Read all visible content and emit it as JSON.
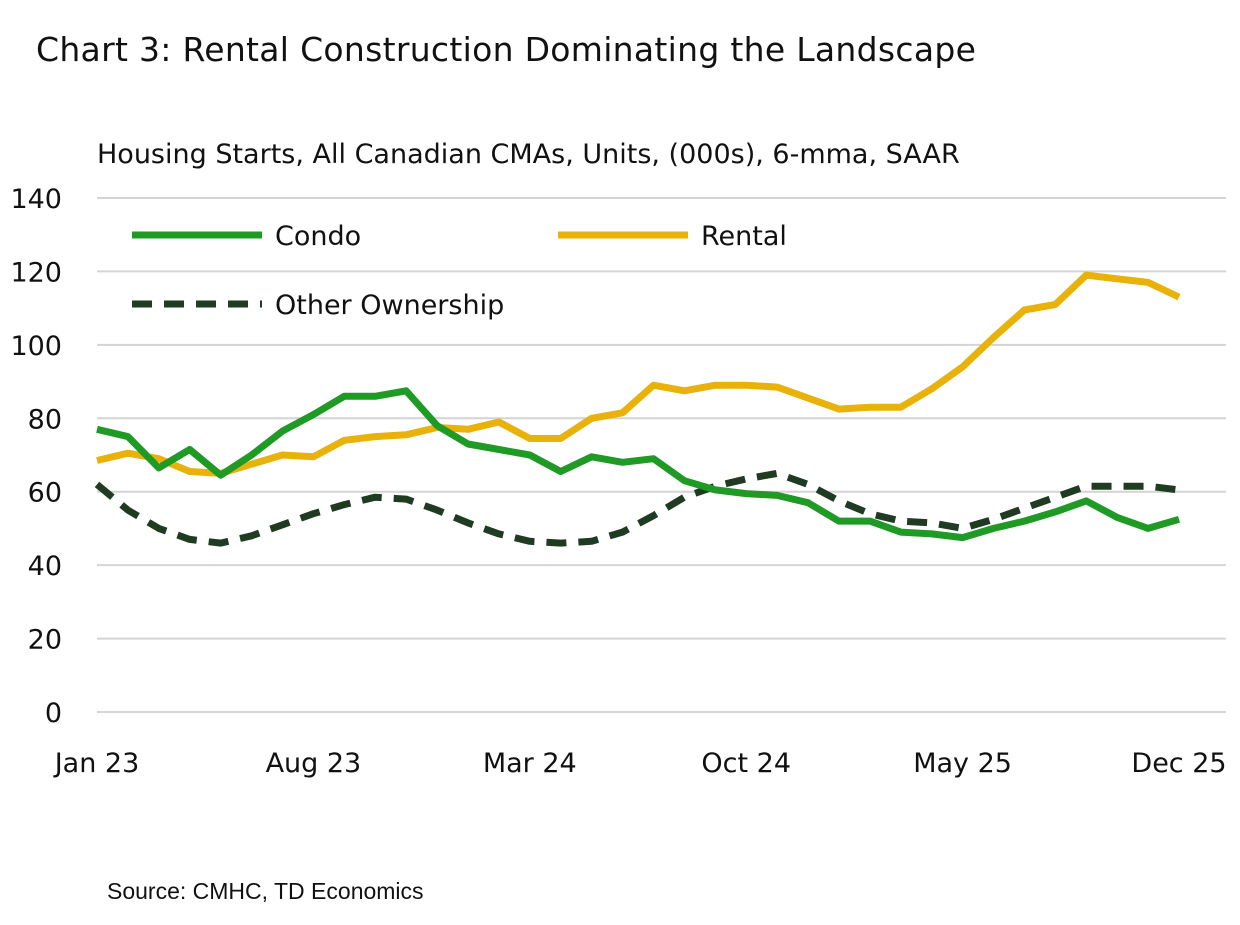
{
  "title": "Chart 3: Rental Construction Dominating the Landscape",
  "subtitle": "Housing Starts, All Canadian CMAs, Units, (000s), 6-mma, SAAR",
  "source": "Source: CMHC, TD Economics",
  "colors": {
    "condo": "#1f9a25",
    "rental": "#e8b20a",
    "other": "#1f3b22",
    "grid": "#d4d4d4"
  },
  "chart_data": {
    "type": "line",
    "title": "Chart 3: Rental Construction Dominating the Landscape",
    "subtitle": "Housing Starts, All Canadian CMAs, Units, (000s), 6-mma, SAAR",
    "xlabel": "",
    "ylabel": "",
    "ylim": [
      0,
      140
    ],
    "yticks": [
      0,
      20,
      40,
      60,
      80,
      100,
      120,
      140
    ],
    "grid": "horizontal",
    "legend_position": "top-left",
    "x": [
      "Jan 23",
      "Feb 23",
      "Mar 23",
      "Apr 23",
      "May 23",
      "Jun 23",
      "Jul 23",
      "Aug 23",
      "Sep 23",
      "Oct 23",
      "Nov 23",
      "Dec 23",
      "Jan 24",
      "Feb 24",
      "Mar 24",
      "Apr 24",
      "May 24",
      "Jun 24",
      "Jul 24",
      "Aug 24",
      "Sep 24",
      "Oct 24",
      "Nov 24",
      "Dec 24",
      "Jan 25",
      "Feb 25",
      "Mar 25",
      "Apr 25",
      "May 25",
      "Jun 25",
      "Jul 25",
      "Aug 25",
      "Sep 25",
      "Oct 25",
      "Nov 25",
      "Dec 25"
    ],
    "x_tick_labels": [
      "Jan 23",
      "Aug 23",
      "Mar 24",
      "Oct 24",
      "May 25",
      "Dec 25"
    ],
    "series": [
      {
        "name": "Condo",
        "style": "solid",
        "values": [
          77,
          75,
          66.5,
          71.5,
          64.5,
          70,
          76.5,
          81,
          86,
          86,
          87.5,
          78,
          73,
          71.5,
          70,
          65.5,
          69.5,
          68,
          69,
          63,
          60.5,
          59.5,
          59,
          57,
          52,
          52,
          49,
          48.5,
          47.5,
          50,
          52,
          54.5,
          57.5,
          53,
          50,
          52.5
        ]
      },
      {
        "name": "Rental",
        "style": "solid",
        "values": [
          68.5,
          70.5,
          69,
          65.5,
          65,
          67.5,
          70,
          69.5,
          74,
          75,
          75.5,
          77.5,
          77,
          79,
          74.5,
          74.5,
          80,
          81.5,
          89,
          87.5,
          89,
          89,
          88.5,
          85.5,
          82.5,
          83,
          83,
          88,
          94,
          102,
          109.5,
          111,
          119,
          118,
          117,
          113
        ]
      },
      {
        "name": "Other Ownership",
        "style": "dashed",
        "values": [
          62,
          55,
          50,
          47,
          46,
          48,
          51,
          54,
          56.5,
          58.5,
          58,
          55,
          51.5,
          48.5,
          46.5,
          46,
          46.5,
          49,
          53.5,
          58.5,
          61.5,
          63.5,
          65,
          62,
          57.5,
          54,
          52,
          51.5,
          50,
          52.5,
          55.5,
          58.5,
          61.5,
          61.5,
          61.5,
          60.5
        ]
      }
    ]
  }
}
